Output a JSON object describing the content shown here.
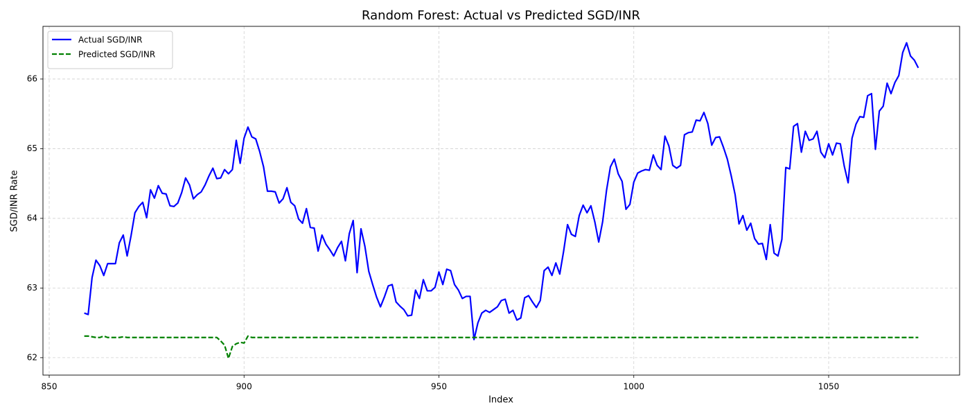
{
  "chart_data": {
    "type": "line",
    "title": "Random Forest: Actual vs Predicted SGD/INR",
    "xlabel": "Index",
    "ylabel": "SGD/INR Rate",
    "x": [
      859,
      860,
      861,
      862,
      863,
      864,
      865,
      866,
      867,
      868,
      869,
      870,
      871,
      872,
      873,
      874,
      875,
      876,
      877,
      878,
      879,
      880,
      881,
      882,
      883,
      884,
      885,
      886,
      887,
      888,
      889,
      890,
      891,
      892,
      893,
      894,
      895,
      896,
      897,
      898,
      899,
      900,
      901,
      902,
      903,
      904,
      905,
      906,
      907,
      908,
      909,
      910,
      911,
      912,
      913,
      914,
      915,
      916,
      917,
      918,
      919,
      920,
      921,
      922,
      923,
      924,
      925,
      926,
      927,
      928,
      929,
      930,
      931,
      932,
      933,
      934,
      935,
      936,
      937,
      938,
      939,
      940,
      941,
      942,
      943,
      944,
      945,
      946,
      947,
      948,
      949,
      950,
      951,
      952,
      953,
      954,
      955,
      956,
      957,
      958,
      959,
      960,
      961,
      962,
      963,
      964,
      965,
      966,
      967,
      968,
      969,
      970,
      971,
      972,
      973,
      974,
      975,
      976,
      977,
      978,
      979,
      980,
      981,
      982,
      983,
      984,
      985,
      986,
      987,
      988,
      989,
      990,
      991,
      992,
      993,
      994,
      995,
      996,
      997,
      998,
      999,
      1000,
      1001,
      1002,
      1003,
      1004,
      1005,
      1006,
      1007,
      1008,
      1009,
      1010,
      1011,
      1012,
      1013,
      1014,
      1015,
      1016,
      1017,
      1018,
      1019,
      1020,
      1021,
      1022,
      1023,
      1024,
      1025,
      1026,
      1027,
      1028,
      1029,
      1030,
      1031,
      1032,
      1033,
      1034,
      1035,
      1036,
      1037,
      1038,
      1039,
      1040,
      1041,
      1042,
      1043,
      1044,
      1045,
      1046,
      1047,
      1048,
      1049,
      1050,
      1051,
      1052,
      1053,
      1054,
      1055,
      1056,
      1057,
      1058,
      1059,
      1060,
      1061,
      1062,
      1063,
      1064,
      1065,
      1066,
      1067,
      1068,
      1069,
      1070,
      1071,
      1072,
      1073
    ],
    "series": [
      {
        "name": "Actual SGD/INR",
        "color": "#0000ff",
        "linestyle": "solid",
        "values": [
          62.64,
          62.62,
          63.15,
          63.4,
          63.32,
          63.18,
          63.35,
          63.35,
          63.35,
          63.65,
          63.76,
          63.46,
          63.75,
          64.08,
          64.17,
          64.23,
          64.01,
          64.41,
          64.29,
          64.47,
          64.36,
          64.35,
          64.18,
          64.17,
          64.22,
          64.37,
          64.58,
          64.48,
          64.28,
          64.34,
          64.38,
          64.48,
          64.61,
          64.72,
          64.57,
          64.58,
          64.7,
          64.64,
          64.7,
          65.12,
          64.79,
          65.15,
          65.31,
          65.17,
          65.14,
          64.96,
          64.74,
          64.39,
          64.39,
          64.38,
          64.22,
          64.28,
          64.44,
          64.23,
          64.18,
          63.99,
          63.93,
          64.14,
          63.87,
          63.86,
          63.53,
          63.76,
          63.63,
          63.55,
          63.46,
          63.58,
          63.67,
          63.39,
          63.78,
          63.97,
          63.22,
          63.85,
          63.6,
          63.24,
          63.05,
          62.87,
          62.73,
          62.87,
          63.03,
          63.05,
          62.8,
          62.74,
          62.69,
          62.6,
          62.61,
          62.97,
          62.85,
          63.12,
          62.96,
          62.96,
          63.01,
          63.23,
          63.05,
          63.27,
          63.25,
          63.05,
          62.97,
          62.85,
          62.88,
          62.88,
          62.26,
          62.5,
          62.64,
          62.68,
          62.65,
          62.69,
          62.73,
          62.82,
          62.84,
          62.64,
          62.68,
          62.54,
          62.57,
          62.86,
          62.89,
          62.8,
          62.72,
          62.82,
          63.25,
          63.3,
          63.18,
          63.36,
          63.2,
          63.53,
          63.91,
          63.77,
          63.74,
          64.04,
          64.19,
          64.08,
          64.18,
          63.95,
          63.66,
          63.95,
          64.4,
          64.74,
          64.85,
          64.64,
          64.53,
          64.13,
          64.2,
          64.52,
          64.65,
          64.68,
          64.7,
          64.69,
          64.91,
          64.76,
          64.7,
          65.18,
          65.04,
          64.76,
          64.72,
          64.76,
          65.2,
          65.23,
          65.24,
          65.41,
          65.4,
          65.52,
          65.36,
          65.05,
          65.16,
          65.17,
          65.02,
          64.85,
          64.61,
          64.34,
          63.92,
          64.04,
          63.83,
          63.93,
          63.71,
          63.63,
          63.64,
          63.41,
          63.91,
          63.5,
          63.46,
          63.7,
          64.73,
          64.71,
          65.32,
          65.36,
          64.95,
          65.25,
          65.12,
          65.14,
          65.25,
          64.95,
          64.87,
          65.07,
          64.91,
          65.08,
          65.07,
          64.75,
          64.51,
          65.15,
          65.35,
          65.46,
          65.45,
          65.76,
          65.79,
          64.99,
          65.54,
          65.61,
          65.94,
          65.79,
          65.95,
          66.05,
          66.38,
          66.52,
          66.33,
          66.27,
          66.16
        ]
      },
      {
        "name": "Predicted SGD/INR",
        "color": "#008000",
        "linestyle": "dashed",
        "values": [
          62.31,
          62.31,
          62.3,
          62.29,
          62.29,
          62.31,
          62.29,
          62.29,
          62.29,
          62.29,
          62.3,
          62.29,
          62.29,
          62.29,
          62.29,
          62.29,
          62.29,
          62.29,
          62.29,
          62.29,
          62.29,
          62.29,
          62.29,
          62.29,
          62.29,
          62.29,
          62.29,
          62.29,
          62.29,
          62.29,
          62.29,
          62.29,
          62.29,
          62.29,
          62.29,
          62.24,
          62.18,
          61.99,
          62.16,
          62.2,
          62.22,
          62.21,
          62.31,
          62.29,
          62.29,
          62.29,
          62.29,
          62.29,
          62.29,
          62.29,
          62.29,
          62.29,
          62.29,
          62.29,
          62.29,
          62.29,
          62.29,
          62.29,
          62.29,
          62.29,
          62.29,
          62.29,
          62.29,
          62.29,
          62.29,
          62.29,
          62.29,
          62.29,
          62.29,
          62.29,
          62.29,
          62.29,
          62.29,
          62.29,
          62.29,
          62.29,
          62.29,
          62.29,
          62.29,
          62.29,
          62.29,
          62.29,
          62.29,
          62.29,
          62.29,
          62.29,
          62.29,
          62.29,
          62.29,
          62.29,
          62.29,
          62.29,
          62.29,
          62.29,
          62.29,
          62.29,
          62.29,
          62.29,
          62.29,
          62.29,
          62.29,
          62.29,
          62.29,
          62.29,
          62.29,
          62.29,
          62.29,
          62.29,
          62.29,
          62.29,
          62.29,
          62.29,
          62.29,
          62.29,
          62.29,
          62.29,
          62.29,
          62.29,
          62.29,
          62.29,
          62.29,
          62.29,
          62.29,
          62.29,
          62.29,
          62.29,
          62.29,
          62.29,
          62.29,
          62.29,
          62.29,
          62.29,
          62.29,
          62.29,
          62.29,
          62.29,
          62.29,
          62.29,
          62.29,
          62.29,
          62.29,
          62.29,
          62.29,
          62.29,
          62.29,
          62.29,
          62.29,
          62.29,
          62.29,
          62.29,
          62.29,
          62.29,
          62.29,
          62.29,
          62.29,
          62.29,
          62.29,
          62.29,
          62.29,
          62.29,
          62.29,
          62.29,
          62.29,
          62.29,
          62.29,
          62.29,
          62.29,
          62.29,
          62.29,
          62.29,
          62.29,
          62.29,
          62.29,
          62.29,
          62.29,
          62.29,
          62.29,
          62.29,
          62.29,
          62.29,
          62.29,
          62.29,
          62.29,
          62.29,
          62.29,
          62.29,
          62.29,
          62.29,
          62.29,
          62.29,
          62.29,
          62.29,
          62.29,
          62.29,
          62.29,
          62.29,
          62.29,
          62.29,
          62.29,
          62.29,
          62.29,
          62.29,
          62.29,
          62.29,
          62.29,
          62.29,
          62.29,
          62.29,
          62.29,
          62.29,
          62.29,
          62.29,
          62.29,
          62.29,
          62.29
        ]
      }
    ],
    "xlim": [
      848.4,
      1083.6
    ],
    "xticks": [
      850,
      900,
      950,
      1000,
      1050
    ],
    "ylim": [
      61.75,
      66.756
    ],
    "yticks": [
      62,
      63,
      64,
      65,
      66
    ],
    "grid": true,
    "legend": "upper left"
  }
}
